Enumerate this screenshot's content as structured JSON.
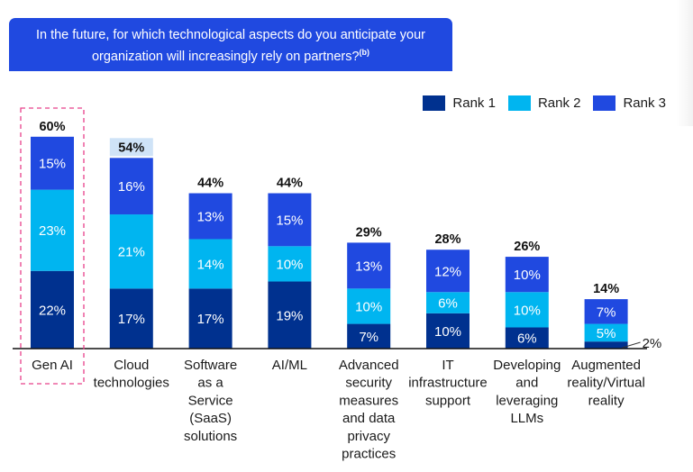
{
  "header": {
    "question": "In the future, for which technological aspects do you anticipate your organization will increasingly rely on partners?",
    "footnote_marker": "(b)"
  },
  "colors": {
    "rank1": "#00318f",
    "rank2": "#00b5f0",
    "rank3": "#2049e0",
    "title_bg": "#2049e0",
    "highlight_box": "#e8408a",
    "total_highlight_bg": "#cfe3f7"
  },
  "chart_data": {
    "type": "bar",
    "stacked": true,
    "title": "In the future, for which technological aspects do you anticipate your organization will increasingly rely on partners?(b)",
    "xlabel": "",
    "ylabel": "",
    "ylim": [
      0,
      60
    ],
    "grid": false,
    "legend_position": "top-right",
    "categories": [
      [
        "Gen AI"
      ],
      [
        "Cloud",
        "technologies"
      ],
      [
        "Software",
        "as a",
        "Service",
        "(SaaS)",
        "solutions"
      ],
      [
        "AI/ML"
      ],
      [
        "Advanced",
        "security",
        "measures",
        "and data",
        "privacy",
        "practices"
      ],
      [
        "IT",
        "infrastructure",
        "support"
      ],
      [
        "Developing",
        "and",
        "leveraging",
        "LLMs"
      ],
      [
        "Augmented",
        "reality/Virtual",
        "reality"
      ]
    ],
    "series": [
      {
        "name": "Rank 1",
        "values": [
          22,
          17,
          17,
          19,
          7,
          10,
          6,
          2
        ]
      },
      {
        "name": "Rank 2",
        "values": [
          23,
          21,
          14,
          10,
          10,
          6,
          10,
          5
        ]
      },
      {
        "name": "Rank 3",
        "values": [
          15,
          16,
          13,
          15,
          13,
          12,
          10,
          7
        ]
      }
    ],
    "totals": [
      60,
      54,
      44,
      44,
      29,
      28,
      26,
      14
    ],
    "segment_labels": [
      [
        "22%",
        "23%",
        "15%"
      ],
      [
        "17%",
        "21%",
        "16%"
      ],
      [
        "17%",
        "14%",
        "13%"
      ],
      [
        "19%",
        "10%",
        "15%"
      ],
      [
        "7%",
        "10%",
        "13%"
      ],
      [
        "10%",
        "6%",
        "12%"
      ],
      [
        "6%",
        "10%",
        "10%"
      ],
      [
        "2%",
        "5%",
        "7%"
      ]
    ],
    "total_labels": [
      "60%",
      "54%",
      "44%",
      "44%",
      "29%",
      "28%",
      "26%",
      "14%"
    ],
    "highlighted_category_index": 0,
    "highlighted_total_index": 1,
    "callout_segment": {
      "category_index": 7,
      "series_index": 0,
      "label": "2%"
    }
  }
}
